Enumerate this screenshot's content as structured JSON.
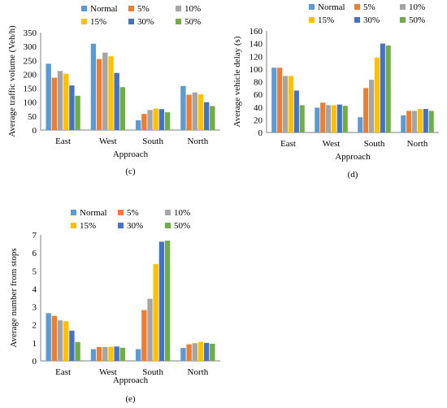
{
  "colors": {
    "Normal": "#5b9bd5",
    "5%": "#ed7d31",
    "10%": "#a5a5a5",
    "15%": "#ffc000",
    "30%": "#4472c4",
    "50%": "#70ad47"
  },
  "chart_data": [
    {
      "type": "bar",
      "panel_label": "(c)",
      "xlabel": "Approach",
      "ylabel": "Average traffic volume (Veh/h)",
      "categories": [
        "East",
        "West",
        "South",
        "North"
      ],
      "ylim": [
        0,
        350
      ],
      "yticks": [
        0,
        50,
        100,
        150,
        200,
        250,
        300,
        350
      ],
      "legend": "top",
      "series": [
        {
          "name": "Normal",
          "values": [
            238,
            310,
            35,
            158
          ]
        },
        {
          "name": "5%",
          "values": [
            188,
            255,
            58,
            127
          ]
        },
        {
          "name": "10%",
          "values": [
            212,
            278,
            72,
            135
          ]
        },
        {
          "name": "15%",
          "values": [
            202,
            265,
            77,
            128
          ]
        },
        {
          "name": "30%",
          "values": [
            160,
            205,
            75,
            100
          ]
        },
        {
          "name": "50%",
          "values": [
            123,
            154,
            64,
            86
          ]
        }
      ]
    },
    {
      "type": "bar",
      "panel_label": "(d)",
      "xlabel": "Approach",
      "ylabel": "Average vehicle delay (s)",
      "categories": [
        "East",
        "West",
        "South",
        "North"
      ],
      "ylim": [
        0,
        160
      ],
      "yticks": [
        0,
        20,
        40,
        60,
        80,
        100,
        120,
        140,
        160
      ],
      "legend": "top",
      "series": [
        {
          "name": "Normal",
          "values": [
            102,
            39,
            24,
            27
          ]
        },
        {
          "name": "5%",
          "values": [
            102,
            47,
            70,
            34
          ]
        },
        {
          "name": "10%",
          "values": [
            89,
            43,
            83,
            34
          ]
        },
        {
          "name": "15%",
          "values": [
            89,
            43,
            118,
            37
          ]
        },
        {
          "name": "30%",
          "values": [
            66,
            44,
            140,
            37
          ]
        },
        {
          "name": "50%",
          "values": [
            43,
            42,
            137,
            34
          ]
        }
      ]
    },
    {
      "type": "bar",
      "panel_label": "(e)",
      "xlabel": "Approach",
      "ylabel": "Average number from stops",
      "categories": [
        "East",
        "West",
        "South",
        "North"
      ],
      "ylim": [
        0,
        7
      ],
      "yticks": [
        0,
        1,
        2,
        3,
        4,
        5,
        6,
        7
      ],
      "legend": "top",
      "series": [
        {
          "name": "Normal",
          "values": [
            2.65,
            0.65,
            0.65,
            0.72
          ]
        },
        {
          "name": "5%",
          "values": [
            2.5,
            0.77,
            2.82,
            0.92
          ]
        },
        {
          "name": "10%",
          "values": [
            2.25,
            0.77,
            3.45,
            0.98
          ]
        },
        {
          "name": "15%",
          "values": [
            2.2,
            0.78,
            5.38,
            1.05
          ]
        },
        {
          "name": "30%",
          "values": [
            1.68,
            0.8,
            6.62,
            1.0
          ]
        },
        {
          "name": "50%",
          "values": [
            1.05,
            0.73,
            6.68,
            0.95
          ]
        }
      ]
    }
  ]
}
